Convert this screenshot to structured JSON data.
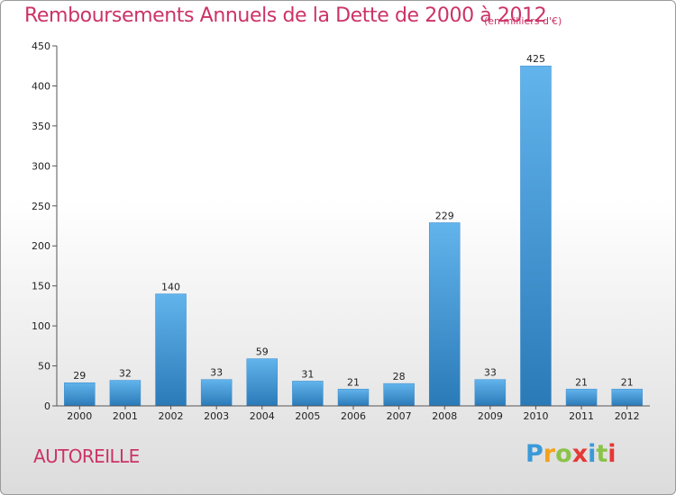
{
  "header": {
    "title": "Remboursements Annuels de la Dette de 2000 à 2012",
    "unit": "(en milliers d'€)"
  },
  "footer": {
    "commune": "AUTOREILLE",
    "logo": [
      "P",
      "r",
      "o",
      "x",
      "i",
      "t",
      "i"
    ],
    "logo_colors": [
      "#3a9ad9",
      "#f3a21c",
      "#8bc34a",
      "#e53935",
      "#3a9ad9",
      "#8bc34a",
      "#e53935"
    ]
  },
  "chart_data": {
    "type": "bar",
    "title": "Remboursements Annuels de la Dette de 2000 à 2012",
    "categories": [
      "2000",
      "2001",
      "2002",
      "2003",
      "2004",
      "2005",
      "2006",
      "2007",
      "2008",
      "2009",
      "2010",
      "2011",
      "2012"
    ],
    "values": [
      29,
      32,
      140,
      33,
      59,
      31,
      21,
      28,
      229,
      33,
      425,
      21,
      21
    ],
    "ylim": [
      0,
      450
    ],
    "yticks": [
      0,
      50,
      100,
      150,
      200,
      250,
      300,
      350,
      400,
      450
    ],
    "grid": false,
    "bar_color_light": "#62b4ec",
    "bar_color_dark": "#2a7ab8"
  }
}
